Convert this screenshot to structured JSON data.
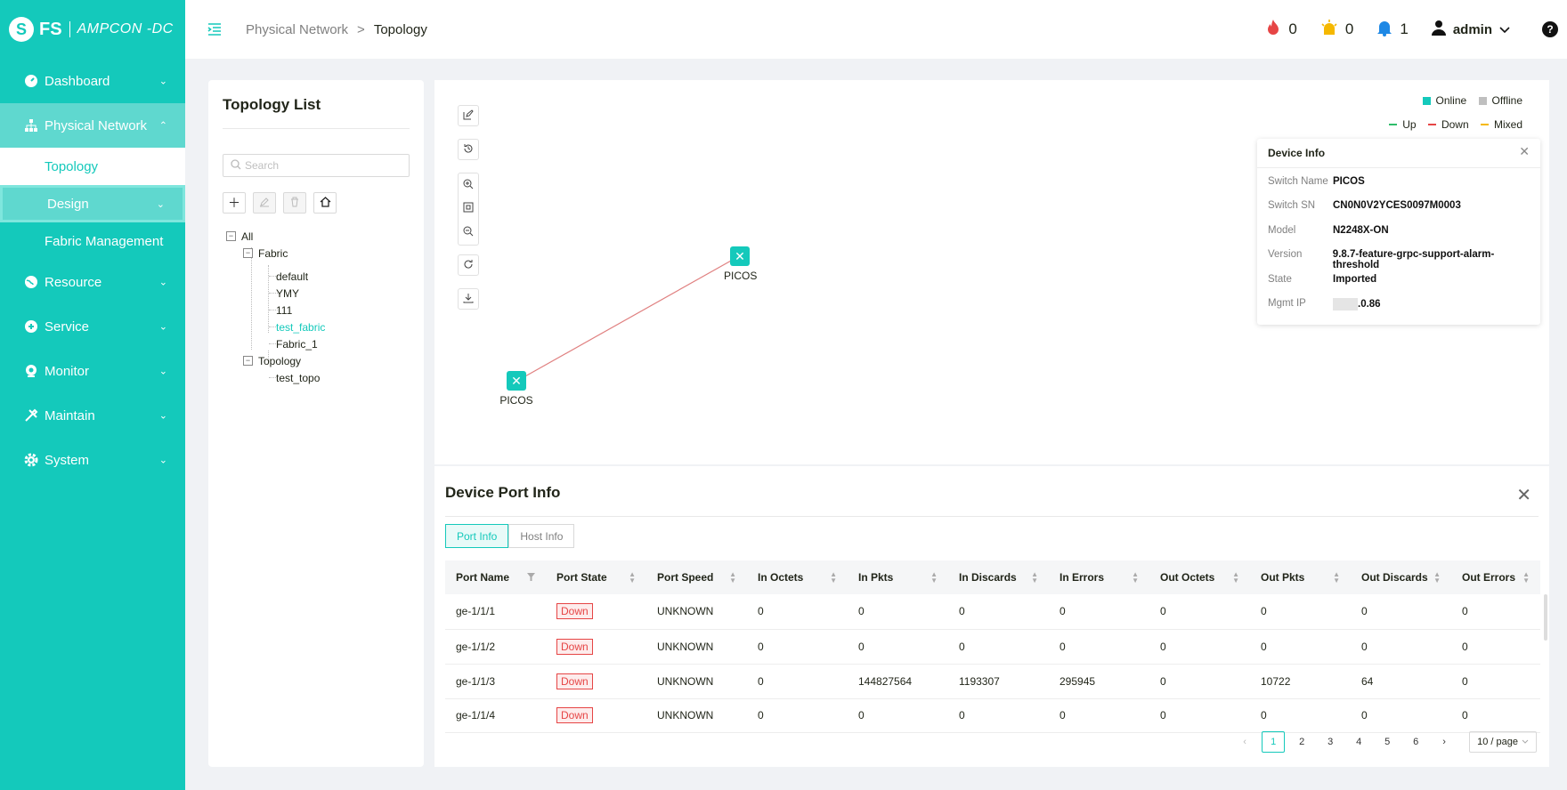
{
  "brand": {
    "mark": "S",
    "fs": "FS",
    "product": "AMPCON -DC"
  },
  "sidebar": {
    "items": [
      {
        "label": "Dashboard",
        "icon": "dashboard-icon"
      },
      {
        "label": "Physical Network",
        "icon": "network-icon"
      },
      {
        "label": "Resource",
        "icon": "globe-icon"
      },
      {
        "label": "Service",
        "icon": "service-icon"
      },
      {
        "label": "Monitor",
        "icon": "monitor-icon"
      },
      {
        "label": "Maintain",
        "icon": "tools-icon"
      },
      {
        "label": "System",
        "icon": "gear-icon"
      }
    ],
    "sub_items": [
      "Topology",
      "Design",
      "Fabric Management"
    ]
  },
  "header": {
    "breadcrumb": [
      "Physical Network",
      "Topology"
    ],
    "separator": ">",
    "alarms": {
      "critical": "0",
      "warning": "0",
      "info": "1"
    },
    "user": "admin",
    "help": "?"
  },
  "topology_list": {
    "title": "Topology List",
    "search_placeholder": "Search",
    "tree": {
      "root": "All",
      "fabric": "Fabric",
      "fabric_children": [
        "default",
        "YMY",
        "111",
        "test_fabric",
        "Fabric_1"
      ],
      "topology": "Topology",
      "topology_children": [
        "test_topo"
      ]
    }
  },
  "legend": {
    "online": "Online",
    "offline": "Offline",
    "up": "Up",
    "down": "Down",
    "mixed": "Mixed",
    "colors": {
      "online": "#14c9bb",
      "offline": "#bfbfbf",
      "up": "#2ebd6a",
      "down": "#e64545",
      "mixed": "#f5b800"
    }
  },
  "device_info": {
    "title": "Device Info",
    "rows": [
      {
        "k": "Switch Name",
        "v": "PICOS"
      },
      {
        "k": "Switch SN",
        "v": "CN0N0V2YCES0097M0003"
      },
      {
        "k": "Model",
        "v": "N2248X-ON"
      },
      {
        "k": "Version",
        "v": "9.8.7-feature-grpc-support-alarm-threshold"
      },
      {
        "k": "State",
        "v": "Imported"
      },
      {
        "k": "Mgmt IP",
        "v": ".0.86"
      }
    ]
  },
  "nodes": [
    {
      "label": "PICOS"
    },
    {
      "label": "PICOS"
    }
  ],
  "port_info": {
    "title": "Device Port Info",
    "tabs": [
      "Port Info",
      "Host Info"
    ],
    "columns": [
      "Port Name",
      "Port State",
      "Port Speed",
      "In Octets",
      "In Pkts",
      "In Discards",
      "In Errors",
      "Out Octets",
      "Out Pkts",
      "Out Discards",
      "Out Errors"
    ],
    "rows": [
      [
        "ge-1/1/1",
        "Down",
        "UNKNOWN",
        "0",
        "0",
        "0",
        "0",
        "0",
        "0",
        "0",
        "0"
      ],
      [
        "ge-1/1/2",
        "Down",
        "UNKNOWN",
        "0",
        "0",
        "0",
        "0",
        "0",
        "0",
        "0",
        "0"
      ],
      [
        "ge-1/1/3",
        "Down",
        "UNKNOWN",
        "0",
        "144827564",
        "1193307",
        "295945",
        "0",
        "10722",
        "64",
        "0"
      ],
      [
        "ge-1/1/4",
        "Down",
        "UNKNOWN",
        "0",
        "0",
        "0",
        "0",
        "0",
        "0",
        "0",
        "0"
      ]
    ],
    "pagination": {
      "pages": [
        "1",
        "2",
        "3",
        "4",
        "5",
        "6"
      ],
      "current": "1",
      "page_size": "10 / page"
    }
  }
}
